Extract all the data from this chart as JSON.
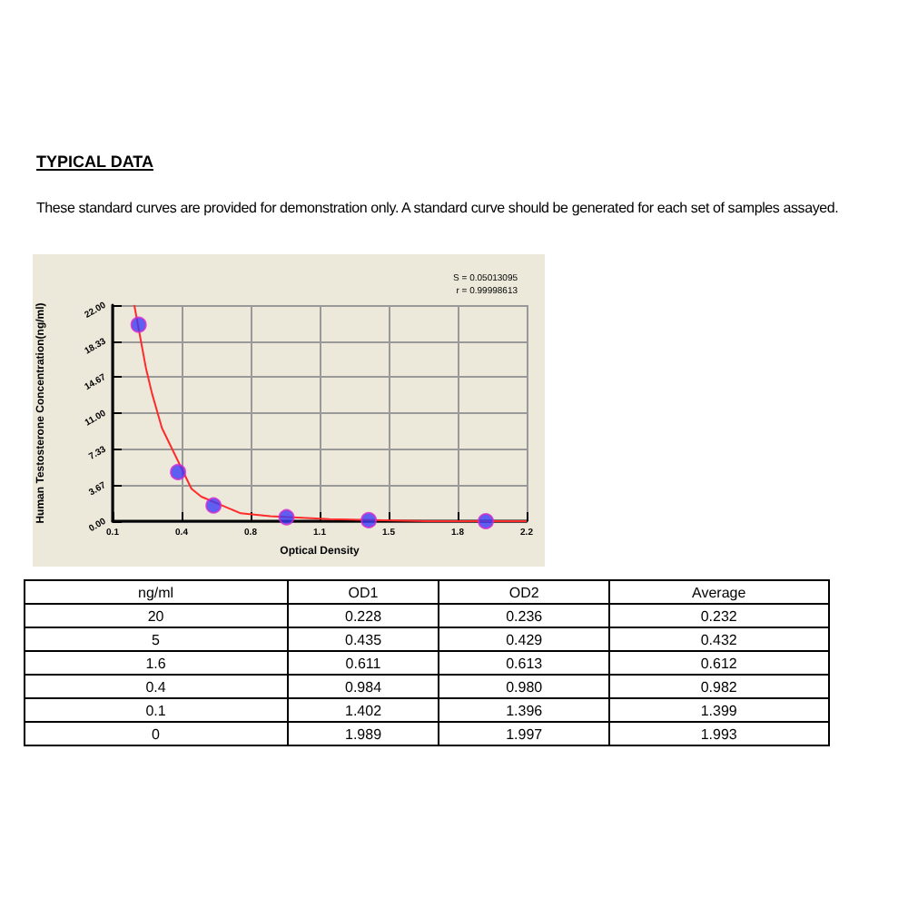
{
  "chart_data": {
    "type": "scatter",
    "title": "TYPICAL DATA",
    "subtitle": "These standard curves are provided for demonstration only. A standard curve should be generated for each set of samples assayed.",
    "xlabel": "Optical Density",
    "ylabel": "Human Testosterone Concentration(ng/ml)",
    "annotations": [
      "S = 0.05013095",
      "r = 0.99998613",
      "ng/ml",
      "OD1",
      "OD2",
      "Average",
      "20",
      "0.228",
      "0.236",
      "0.232",
      "5",
      "0.435",
      "0.429",
      "0.432",
      "1.6",
      "0.611",
      "0.613",
      "0.612",
      "0.4",
      "0.984",
      "0.980",
      "0.982",
      "0.1",
      "1.402",
      "1.396",
      "1.399",
      "0",
      "1.989",
      "1.997",
      "1.993"
    ],
    "series": [
      {
        "type": "line",
        "color": "#ff2a2a",
        "marker": "none",
        "x": [
          0.21,
          0.27,
          0.3,
          0.35,
          0.5,
          0.55,
          0.75,
          0.9,
          1.2,
          1.7,
          2.2
        ],
        "values": [
          22,
          15.5,
          13,
          9.5,
          3.3,
          2.5,
          0.8,
          0.5,
          0.2,
          0,
          0
        ]
      },
      {
        "color": "#3b3bf5",
        "x": [
          0.232,
          0.432,
          0.612,
          0.982,
          1.399,
          1.993
        ],
        "values": [
          20,
          5,
          1.6,
          0.4,
          0.1,
          0
        ]
      }
    ],
    "xlim": [
      0.1,
      2.2
    ],
    "xticks": [
      0.1,
      {
        "value": 0.45,
        "label": "0.4"
      },
      0.8,
      {
        "value": 1.15,
        "label": "1.1"
      },
      1.5,
      {
        "value": 1.85,
        "label": "1.8"
      },
      2.2
    ],
    "ylim": [
      0,
      22
    ],
    "yticks": [
      {
        "value": 0,
        "label": "0.00"
      },
      3.67,
      7.33,
      {
        "value": 11,
        "label": "11.00"
      },
      14.67,
      18.33,
      {
        "value": 22,
        "label": "22.00"
      }
    ],
    "grid": true,
    "marker": "circle"
  }
}
